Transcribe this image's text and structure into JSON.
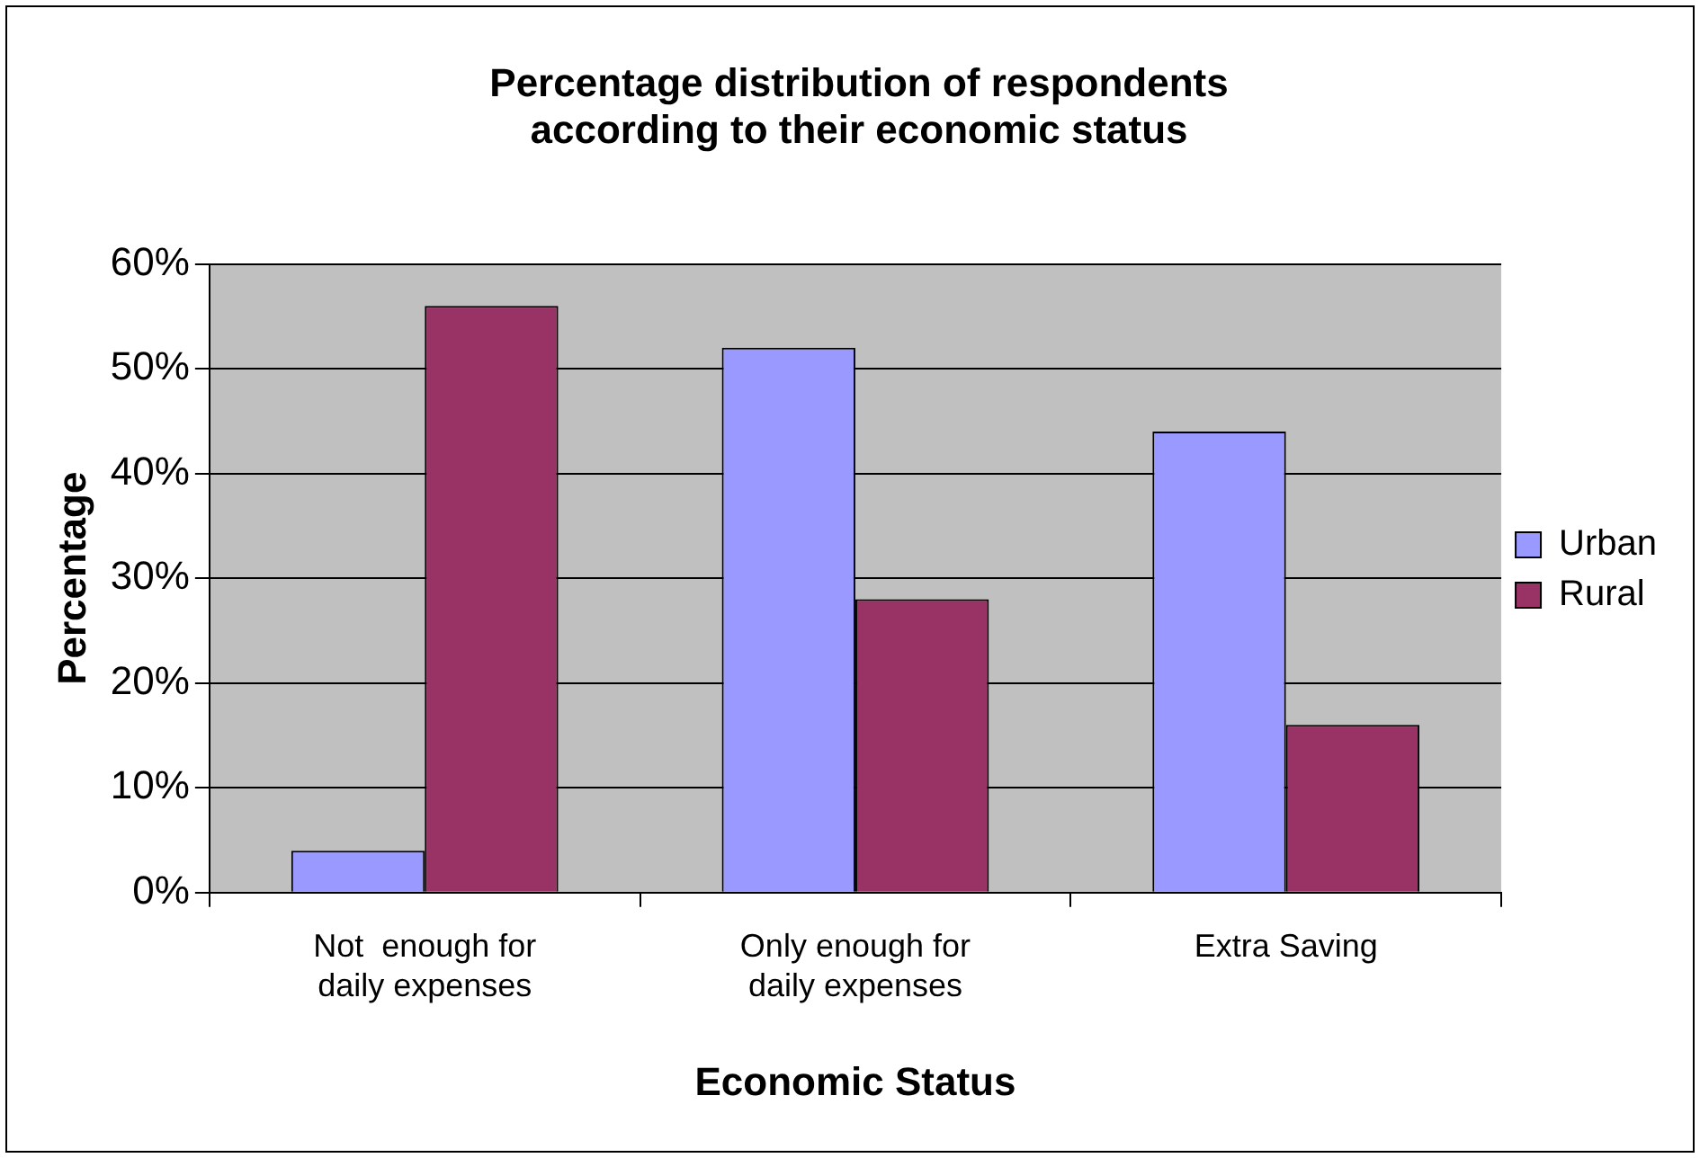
{
  "chart_data": {
    "type": "bar",
    "title": "Percentage distribution of respondents\naccording to their economic status",
    "xlabel": "Economic Status",
    "ylabel": "Percentage",
    "categories": [
      "Not  enough for\ndaily expenses",
      "Only enough for\ndaily expenses",
      "Extra Saving"
    ],
    "series": [
      {
        "name": "Urban",
        "color": "#9999ff",
        "values": [
          4,
          52,
          44
        ]
      },
      {
        "name": "Rural",
        "color": "#993366",
        "values": [
          56,
          28,
          16
        ]
      }
    ],
    "ylim": [
      0,
      60
    ],
    "yticks": [
      {
        "value": 0,
        "label": "0%"
      },
      {
        "value": 10,
        "label": "10%"
      },
      {
        "value": 20,
        "label": "20%"
      },
      {
        "value": 30,
        "label": "30%"
      },
      {
        "value": 40,
        "label": "40%"
      },
      {
        "value": 50,
        "label": "50%"
      },
      {
        "value": 60,
        "label": "60%"
      }
    ],
    "grid": "y",
    "legend": "right"
  }
}
